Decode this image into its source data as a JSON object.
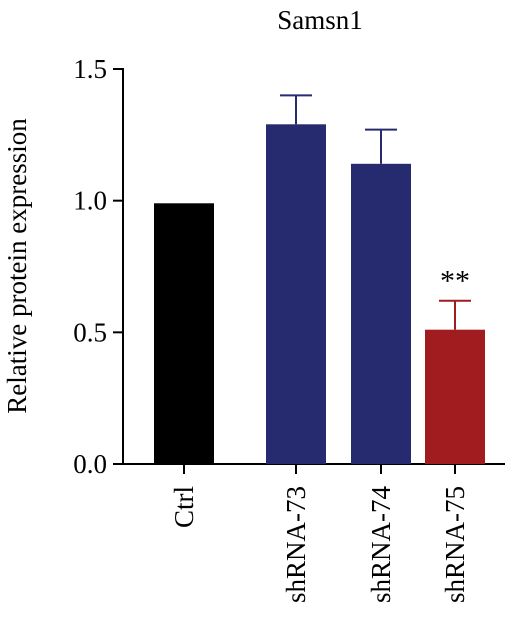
{
  "chart_data": {
    "type": "bar",
    "title": "Samsn1",
    "xlabel": "",
    "ylabel": "Relative protein expression",
    "ylim": [
      0,
      1.5
    ],
    "yticks": [
      "0.0",
      "0.5",
      "1.0",
      "1.5"
    ],
    "ytick_values": [
      0,
      0.5,
      1.0,
      1.5
    ],
    "grid": false,
    "categories": [
      "Ctrl",
      "shRNA-73",
      "shRNA-74",
      "shRNA-75"
    ],
    "values": [
      0.99,
      1.29,
      1.14,
      0.51
    ],
    "errors": [
      0,
      0.11,
      0.13,
      0.11
    ],
    "significance": [
      "",
      "",
      "",
      "**"
    ],
    "colors": [
      "#000000",
      "#262a6e",
      "#262a6e",
      "#a01c1f"
    ],
    "axis_color": "#000000"
  }
}
